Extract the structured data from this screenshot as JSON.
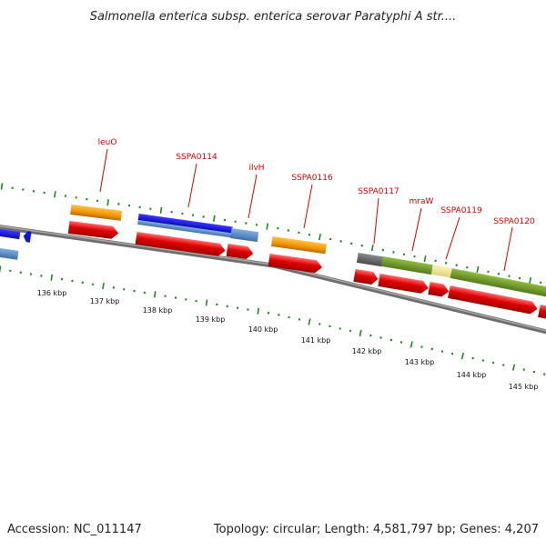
{
  "header": {
    "title": "Salmonella enterica subsp. enterica serovar Paratyphi A str...."
  },
  "footer": {
    "accession": "Accession: NC_011147",
    "summary": "Topology: circular; Length: 4,581,797 bp; Genes: 4,207"
  },
  "ticks": [
    "136 kbp",
    "137 kbp",
    "138 kbp",
    "139 kbp",
    "140 kbp",
    "141 kbp",
    "142 kbp",
    "143 kbp",
    "144 kbp",
    "145 kbp"
  ],
  "gene_labels": [
    "leuO",
    "SSPA0114",
    "ilvH",
    "SSPA0116",
    "SSPA0117",
    "mraW",
    "SSPA0119",
    "SSPA0120"
  ],
  "colors": {
    "backbone": "#8a8a8a",
    "tick_green": "#1a8a1a",
    "cds_red": "#e00000",
    "orange": "#f39400",
    "blue": "#1010e0",
    "steel_blue": "#4f86c2",
    "olive": "#6f9a2a",
    "grey": "#6b6b6b",
    "pale_yellow": "#f4e79a",
    "label_red": "#d00000"
  }
}
